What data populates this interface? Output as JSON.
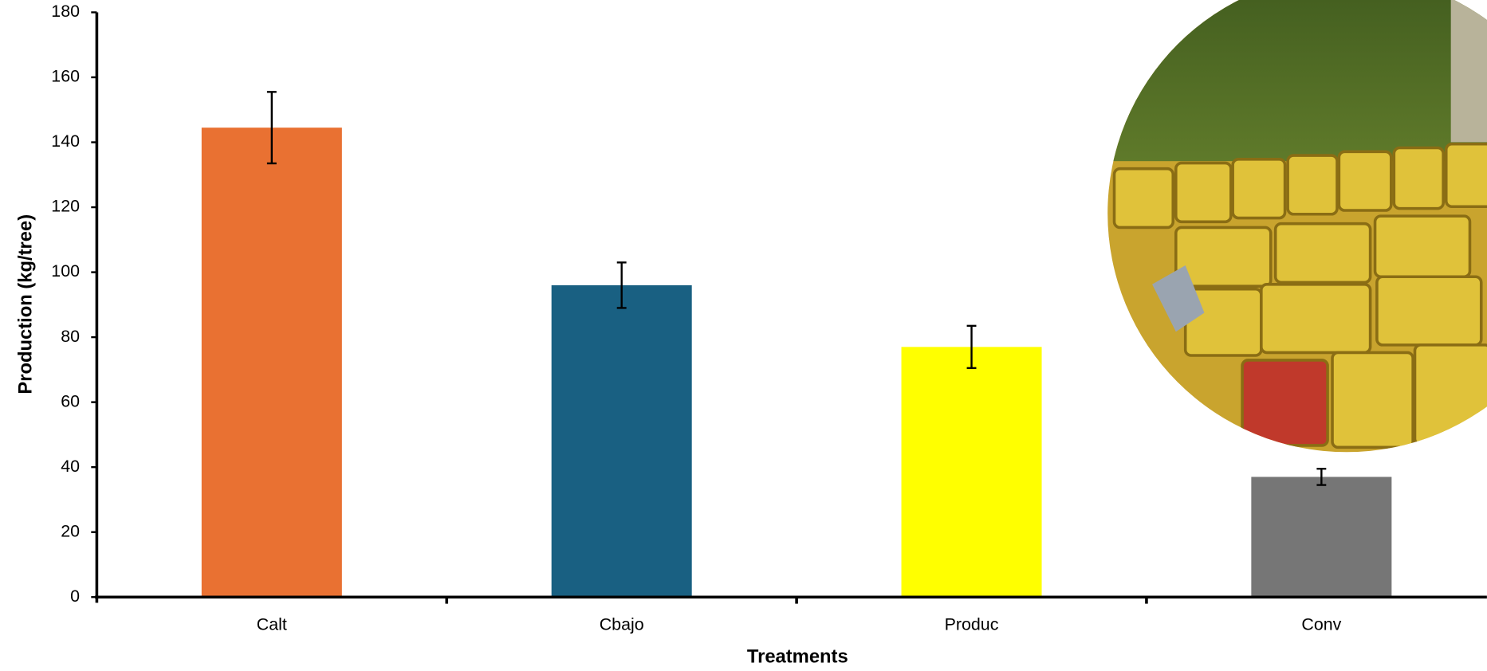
{
  "chart_data": {
    "type": "bar",
    "x_label": "Treatments",
    "y_label": "Production (kg/tree)",
    "categories": [
      "Calt",
      "Cbajo",
      "Produc",
      "Conv"
    ],
    "values": [
      144.5,
      96,
      77,
      37
    ],
    "errors": [
      11,
      7,
      6.5,
      2.5
    ],
    "colors": [
      "#e97132",
      "#196082",
      "#ffff00",
      "#767676"
    ],
    "ylim": [
      0,
      180
    ],
    "yticks": [
      0,
      20,
      40,
      60,
      80,
      100,
      120,
      140,
      160,
      180
    ],
    "grid": false
  }
}
